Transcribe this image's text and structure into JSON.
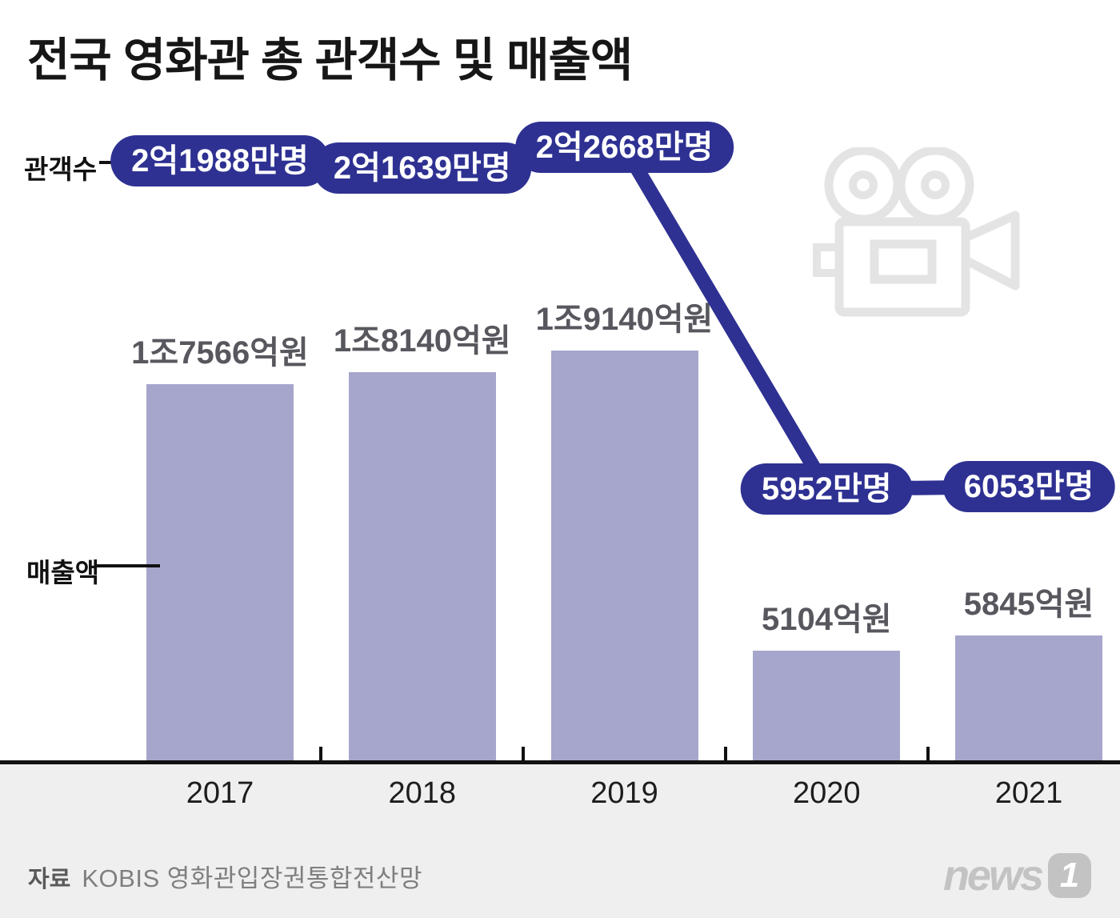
{
  "title": "전국 영화관 총 관객수 및 매출액",
  "series_labels": {
    "audience": "관객수",
    "revenue": "매출액"
  },
  "source": {
    "label": "자료",
    "text": "KOBIS 영화관입장권통합전산망"
  },
  "logo": {
    "word": "news",
    "one": "1"
  },
  "colors": {
    "pill_navy": "#2e3192",
    "bar_lavender": "#a6a5cb",
    "axis_black": "#111111",
    "band_gray": "#efefef",
    "bar_label_gray": "#57575e",
    "icon_gray": "#e4e4e4",
    "logo_gray": "#c3c3c3"
  },
  "chart_data": {
    "type": "bar+line combo infographic",
    "categories": [
      "2017",
      "2018",
      "2019",
      "2020",
      "2021"
    ],
    "series": [
      {
        "name": "관객수",
        "type": "line",
        "unit": "만명",
        "values": [
          21988,
          21639,
          22668,
          5952,
          6053
        ],
        "labels": [
          "2억1988만명",
          "2억1639만명",
          "2억2668만명",
          "5952만명",
          "6053만명"
        ]
      },
      {
        "name": "매출액",
        "type": "bar",
        "unit": "억원",
        "values": [
          17566,
          18140,
          19140,
          5104,
          5845
        ],
        "labels": [
          "1조7566억원",
          "1조8140억원",
          "1조9140억원",
          "5104억원",
          "5845억원"
        ]
      }
    ],
    "title": "전국 영화관 총 관객수 및 매출액",
    "legend_position": "left-inline (관객수 points to line pills, 매출액 points to bars)",
    "grid": false,
    "decoration_icon": "movie-camera"
  }
}
